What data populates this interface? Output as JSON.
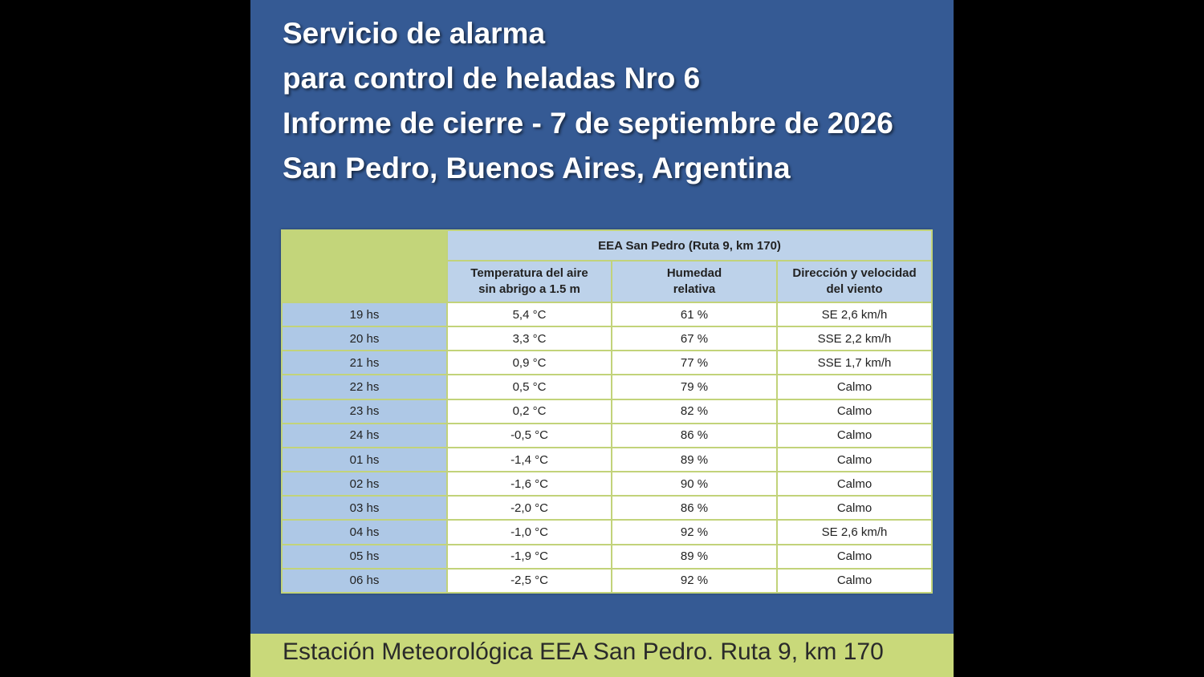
{
  "title": {
    "lines": [
      "Servicio de alarma",
      "para control de heladas Nro 6",
      "Informe de cierre - 7 de septiembre de 2026",
      "San Pedro, Buenos Aires, Argentina"
    ]
  },
  "table": {
    "station": "EEA San Pedro (Ruta 9, km 170)",
    "columns": [
      [
        "Temperatura del aire",
        "sin abrigo a 1.5 m"
      ],
      [
        "Humedad",
        "relativa"
      ],
      [
        "Dirección y velocidad",
        "del viento"
      ]
    ],
    "rows": [
      {
        "hour": "19 hs",
        "temp": "5,4 °C",
        "humidity": "61 %",
        "wind": "SE 2,6 km/h"
      },
      {
        "hour": "20 hs",
        "temp": "3,3 °C",
        "humidity": "67 %",
        "wind": "SSE 2,2  km/h"
      },
      {
        "hour": "21 hs",
        "temp": "0,9 °C",
        "humidity": "77 %",
        "wind": "SSE 1,7  km/h"
      },
      {
        "hour": "22 hs",
        "temp": "0,5 °C",
        "humidity": "79 %",
        "wind": "Calmo"
      },
      {
        "hour": "23 hs",
        "temp": "0,2 °C",
        "humidity": "82 %",
        "wind": "Calmo"
      },
      {
        "hour": "24 hs",
        "temp": "-0,5 °C",
        "humidity": "86 %",
        "wind": "Calmo"
      },
      {
        "hour": "01 hs",
        "temp": "-1,4 °C",
        "humidity": "89 %",
        "wind": "Calmo"
      },
      {
        "hour": "02 hs",
        "temp": "-1,6 °C",
        "humidity": "90 %",
        "wind": "Calmo"
      },
      {
        "hour": "03 hs",
        "temp": "-2,0 °C",
        "humidity": "86 %",
        "wind": "Calmo"
      },
      {
        "hour": "04 hs",
        "temp": "-1,0 °C",
        "humidity": "92 %",
        "wind": "SE 2,6 km/h"
      },
      {
        "hour": "05 hs",
        "temp": "-1,9 °C",
        "humidity": "89 %",
        "wind": "Calmo"
      },
      {
        "hour": "06 hs",
        "temp": "-2,5 °C",
        "humidity": "92 %",
        "wind": "Calmo"
      }
    ]
  },
  "footer": {
    "text": "Estación Meteorológica EEA San Pedro. Ruta 9, km 170"
  },
  "colors": {
    "panel_background": "#355a94",
    "header_green": "#c3d57a",
    "header_blue": "#bdd2ea",
    "hour_column_blue": "#aec8e6",
    "footer_green": "#c9d97a"
  }
}
